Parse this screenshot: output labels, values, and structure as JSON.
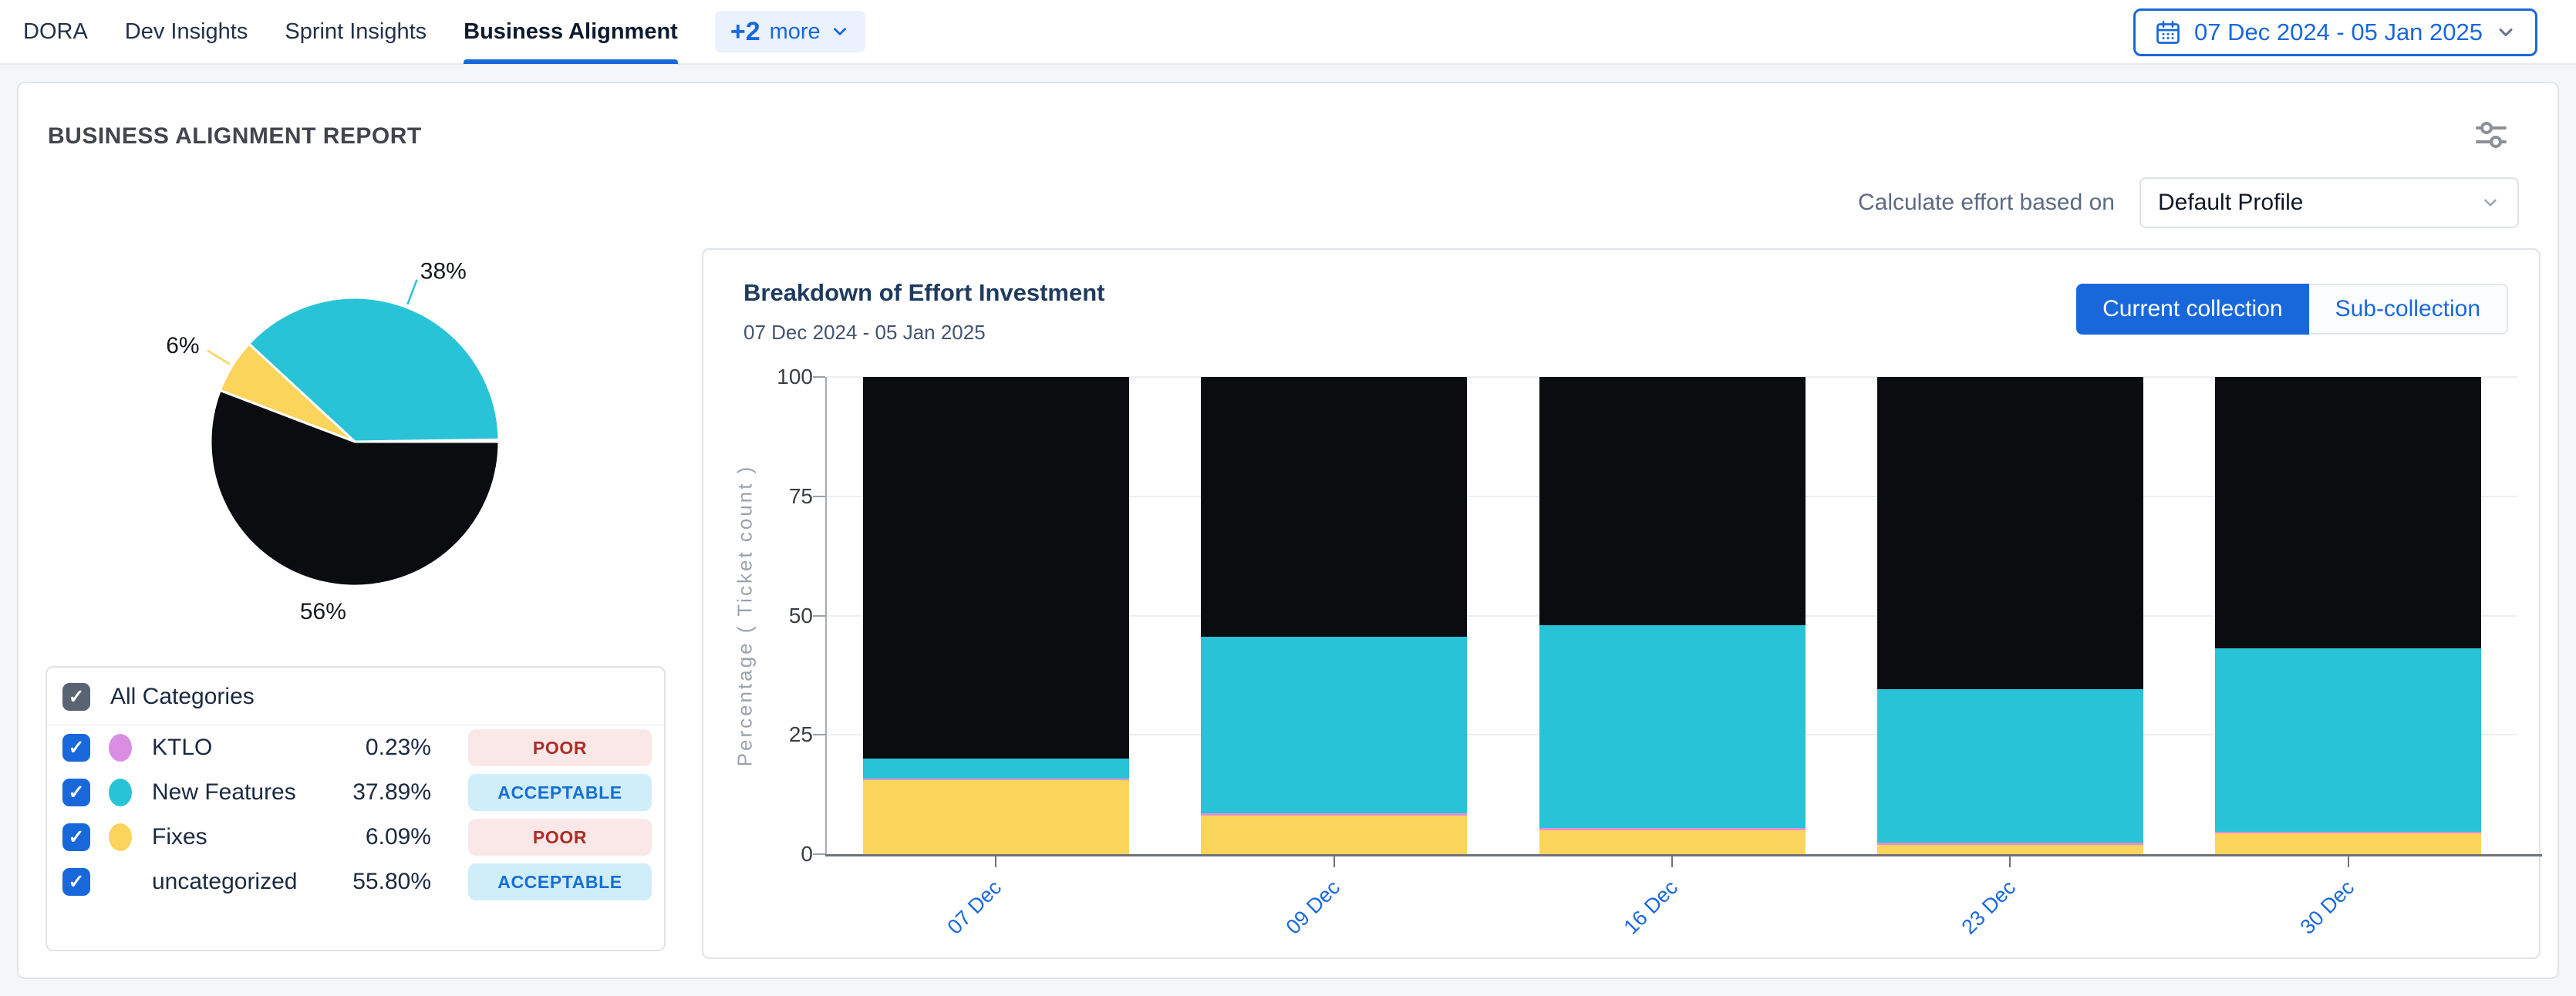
{
  "nav": {
    "tabs": [
      {
        "label": "DORA"
      },
      {
        "label": "Dev Insights"
      },
      {
        "label": "Sprint Insights"
      },
      {
        "label": "Business Alignment"
      }
    ],
    "active_tab": "Business Alignment",
    "more": {
      "count": "+2",
      "label": "more"
    },
    "date_range": "07 Dec 2024 - 05 Jan 2025"
  },
  "report": {
    "title": "BUSINESS ALIGNMENT REPORT",
    "effort_label": "Calculate effort based on",
    "profile_value": "Default Profile",
    "toggle": {
      "current": "Current collection",
      "sub": "Sub-collection"
    }
  },
  "legend": {
    "all_label": "All Categories",
    "categories": [
      {
        "name": "KTLO",
        "value": "0.23%",
        "status": "POOR",
        "color": "#d98ee3"
      },
      {
        "name": "New Features",
        "value": "37.89%",
        "status": "ACCEPTABLE",
        "color": "#29c3d7"
      },
      {
        "name": "Fixes",
        "value": "6.09%",
        "status": "POOR",
        "color": "#fbd45c"
      },
      {
        "name": "uncategorized",
        "value": "55.80%",
        "status": "ACCEPTABLE",
        "color": null
      }
    ]
  },
  "chart_data": [
    {
      "type": "pie",
      "slices": [
        {
          "name": "KTLO",
          "value": 0.23,
          "color": "#d98ee3",
          "label": null
        },
        {
          "name": "New Features",
          "value": 37.89,
          "color": "#29c3d7",
          "label": "38%"
        },
        {
          "name": "Fixes",
          "value": 6.09,
          "color": "#fbd45c",
          "label": "6%"
        },
        {
          "name": "uncategorized",
          "value": 55.8,
          "color": "#0a0c10",
          "label": "56%"
        }
      ],
      "start_angle_deg": 0,
      "direction": "counterclockwise",
      "legend_position": "none"
    },
    {
      "type": "bar",
      "stacked": true,
      "title": "Breakdown of Effort Investment",
      "subtitle": "07 Dec 2024 - 05 Jan 2025",
      "categories": [
        "07 Dec",
        "09 Dec",
        "16 Dec",
        "23 Dec",
        "30 Dec"
      ],
      "series": [
        {
          "name": "Fixes",
          "color": "#fbd45c",
          "values": [
            15.5,
            8.0,
            5.0,
            2.0,
            4.3
          ]
        },
        {
          "name": "KTLO",
          "color": "#e58fd2",
          "values": [
            0.3,
            0.6,
            0.5,
            0.5,
            0.4
          ]
        },
        {
          "name": "New Features",
          "color": "#29c3d7",
          "values": [
            4.2,
            36.9,
            42.5,
            32.0,
            38.4
          ]
        },
        {
          "name": "uncategorized",
          "color": "#0a0c10",
          "values": [
            80.0,
            54.5,
            52.0,
            65.5,
            56.9
          ]
        }
      ],
      "ylabel": "Percentage ( Ticket count )",
      "yticks": [
        0,
        25,
        50,
        75,
        100
      ],
      "ylim": [
        0,
        100
      ],
      "grid": true,
      "legend_position": "none"
    }
  ],
  "colors": {
    "accent": "#1868db",
    "badge_poor_bg": "#fae8e8",
    "badge_poor_text": "#ad2d26",
    "badge_acceptable_bg": "#cfeef9",
    "badge_acceptable_text": "#176fd4"
  }
}
